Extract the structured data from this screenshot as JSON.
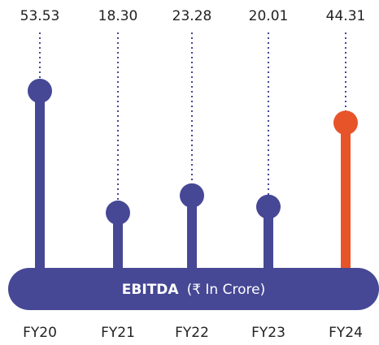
{
  "chart_data": {
    "type": "lollipop",
    "title": "EBITDA",
    "subtitle": "(₹ In Crore)",
    "categories": [
      "FY20",
      "FY21",
      "FY22",
      "FY23",
      "FY24"
    ],
    "values": [
      53.53,
      18.3,
      23.28,
      20.01,
      44.31
    ],
    "value_labels": [
      "53.53",
      "18.30",
      "23.28",
      "20.01",
      "44.31"
    ],
    "colors": [
      "#464895",
      "#464895",
      "#464895",
      "#464895",
      "#e8542a"
    ]
  }
}
